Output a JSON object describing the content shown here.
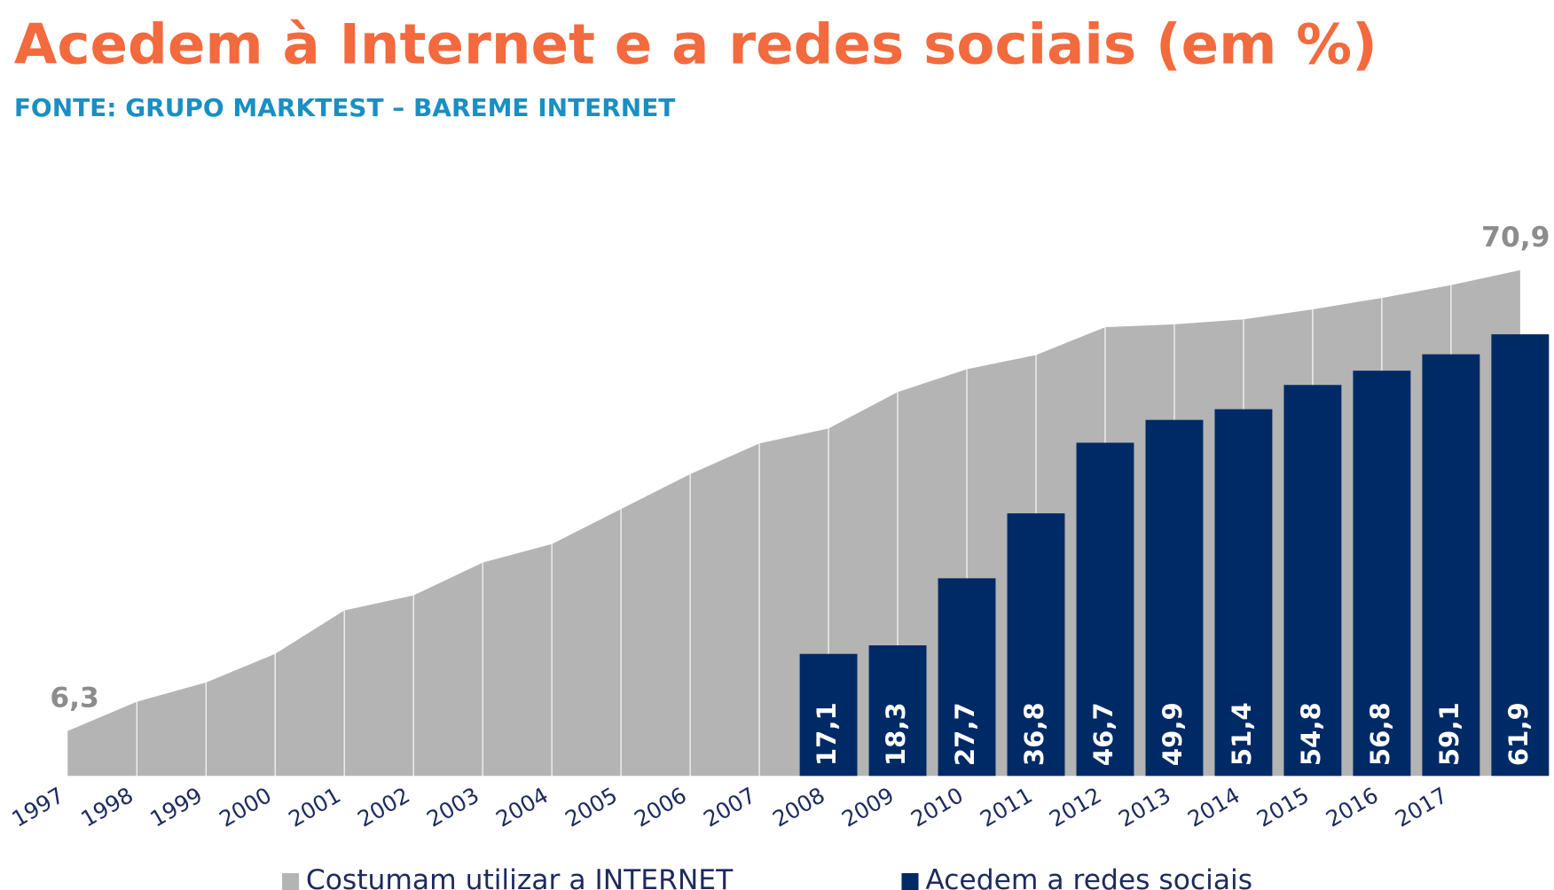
{
  "chart_data": {
    "type": "area_bar",
    "title": "Acedem à Internet e a redes sociais (em %)",
    "subtitle": "FONTE: GRUPO MARKTEST – BAREME INTERNET",
    "categories": [
      "1997",
      "1998",
      "1999",
      "2000",
      "2001",
      "2002",
      "2003",
      "2004",
      "2005",
      "2006",
      "2007",
      "2008",
      "2009",
      "2010",
      "2011",
      "2012",
      "2013",
      "2014",
      "2015",
      "2016",
      "2017",
      null
    ],
    "series": [
      {
        "name": "Costumam utilizar a INTERNET",
        "type": "area",
        "color": "#b3b4b3",
        "values": [
          6.3,
          10.4,
          13.1,
          17.1,
          23.2,
          25.3,
          29.9,
          32.5,
          37.4,
          42.3,
          46.6,
          48.7,
          53.8,
          57.0,
          59.0,
          62.9,
          63.3,
          64.0,
          65.4,
          67.0,
          68.8,
          70.9
        ],
        "value_labels": [
          "6,3",
          null,
          null,
          null,
          null,
          null,
          null,
          null,
          null,
          null,
          null,
          null,
          null,
          null,
          null,
          null,
          null,
          null,
          null,
          null,
          null,
          "70,9"
        ]
      },
      {
        "name": "Acedem a redes sociais",
        "type": "bar",
        "color": "#002a66",
        "values": [
          null,
          null,
          null,
          null,
          null,
          null,
          null,
          null,
          null,
          null,
          null,
          17.1,
          18.3,
          27.7,
          36.8,
          46.7,
          49.9,
          51.4,
          54.8,
          56.8,
          59.1,
          61.9
        ],
        "value_labels": [
          null,
          null,
          null,
          null,
          null,
          null,
          null,
          null,
          null,
          null,
          null,
          "17,1",
          "18,3",
          "27,7",
          "36,8",
          "46,7",
          "49,9",
          "51,4",
          "54,8",
          "56,8",
          "59,1",
          "61,9"
        ]
      }
    ],
    "ylim": [
      0,
      71
    ],
    "legend": "bottom"
  }
}
